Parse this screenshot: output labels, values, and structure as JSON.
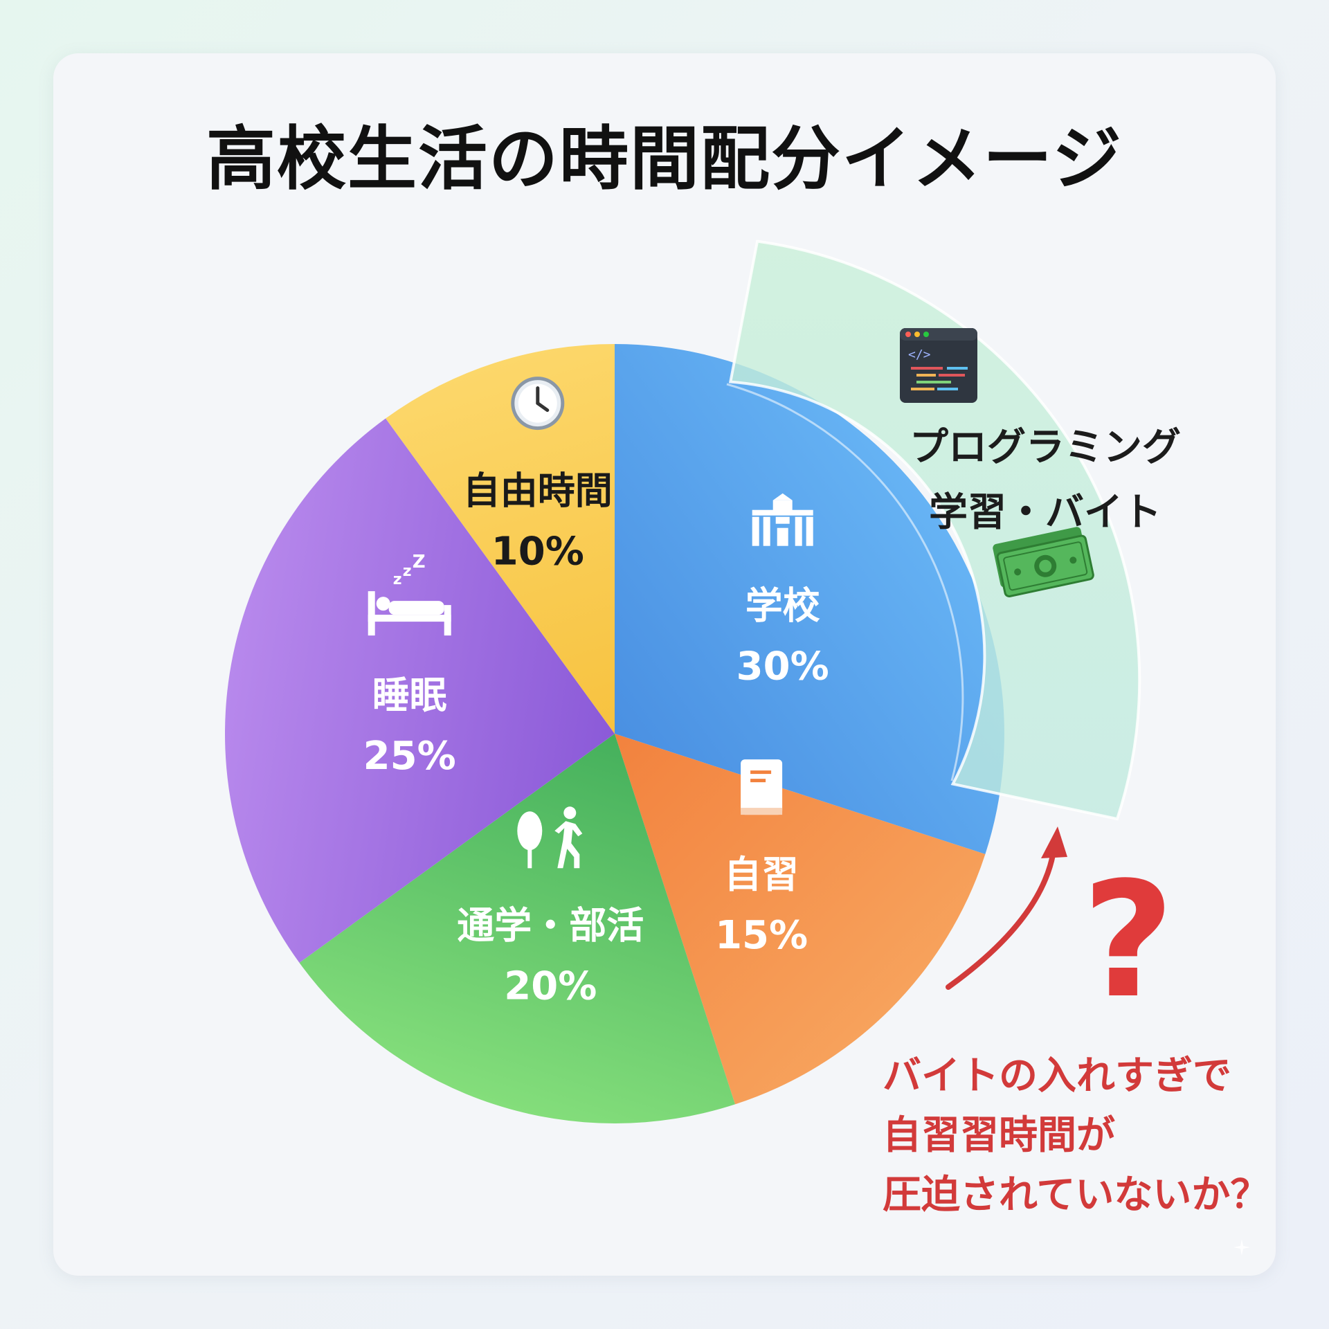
{
  "title": "高校生活の時間配分イメージ",
  "chart_data": {
    "type": "pie",
    "title": "高校生活の時間配分イメージ",
    "slices": [
      {
        "label": "学校",
        "value": 30,
        "display": "30%",
        "color": "#4a90e2",
        "light": "#66b3f4",
        "icon": "school-building-icon"
      },
      {
        "label": "自習",
        "value": 15,
        "display": "15%",
        "color": "#f2823e",
        "light": "#f7a25c",
        "icon": "book-icon"
      },
      {
        "label": "通学・部活",
        "value": 20,
        "display": "20%",
        "color": "#45b05c",
        "light": "#84de7b",
        "icon": "tree-walking-person-icon"
      },
      {
        "label": "睡眠",
        "value": 25,
        "display": "25%",
        "color": "#8b5ad8",
        "light": "#b788ec",
        "icon": "bed-sleep-icon"
      },
      {
        "label": "自由時間",
        "value": 10,
        "display": "10%",
        "color": "#f7c23f",
        "light": "#fcd76a",
        "icon": "clock-icon"
      }
    ]
  },
  "callout": {
    "line1": "プログラミング",
    "line2": "学習・バイト",
    "icons": [
      "code-editor-icon",
      "money-bills-icon"
    ],
    "color": "#bfeadf"
  },
  "warning": {
    "symbol": "?",
    "line1": "バイトの入れすぎで",
    "line2": "自習習時間が",
    "line3": "圧迫されていないか？",
    "color": "#d23a3a"
  }
}
